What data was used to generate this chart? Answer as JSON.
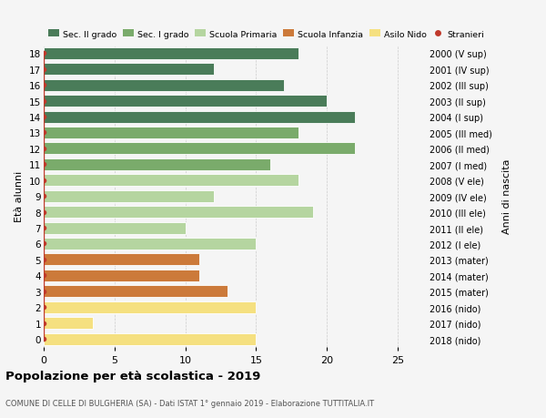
{
  "ages": [
    18,
    17,
    16,
    15,
    14,
    13,
    12,
    11,
    10,
    9,
    8,
    7,
    6,
    5,
    4,
    3,
    2,
    1,
    0
  ],
  "years": [
    "2000 (V sup)",
    "2001 (IV sup)",
    "2002 (III sup)",
    "2003 (II sup)",
    "2004 (I sup)",
    "2005 (III med)",
    "2006 (II med)",
    "2007 (I med)",
    "2008 (V ele)",
    "2009 (IV ele)",
    "2010 (III ele)",
    "2011 (II ele)",
    "2012 (I ele)",
    "2013 (mater)",
    "2014 (mater)",
    "2015 (mater)",
    "2016 (nido)",
    "2017 (nido)",
    "2018 (nido)"
  ],
  "bar_values": [
    18,
    12,
    17,
    20,
    22,
    18,
    22,
    16,
    18,
    12,
    19,
    10,
    15,
    11,
    11,
    13,
    15,
    3.5,
    15
  ],
  "bar_colors": [
    "#4a7c59",
    "#4a7c59",
    "#4a7c59",
    "#4a7c59",
    "#4a7c59",
    "#7aab6b",
    "#7aab6b",
    "#7aab6b",
    "#b5d5a0",
    "#b5d5a0",
    "#b5d5a0",
    "#b5d5a0",
    "#b5d5a0",
    "#cc7a3a",
    "#cc7a3a",
    "#cc7a3a",
    "#f5e080",
    "#f5e080",
    "#f5e080"
  ],
  "stranieri_ages": [
    15,
    12,
    11,
    5,
    4,
    3,
    2,
    1,
    0
  ],
  "stranieri_color": "#c0392b",
  "legend_labels": [
    "Sec. II grado",
    "Sec. I grado",
    "Scuola Primaria",
    "Scuola Infanzia",
    "Asilo Nido",
    "Stranieri"
  ],
  "legend_colors": [
    "#4a7c59",
    "#7aab6b",
    "#b5d5a0",
    "#cc7a3a",
    "#f5e080",
    "#c0392b"
  ],
  "ylabel_left": "Età alunni",
  "ylabel_right": "Anni di nascita",
  "title": "Popolazione per età scolastica - 2019",
  "subtitle": "COMUNE DI CELLE DI BULGHERIA (SA) - Dati ISTAT 1° gennaio 2019 - Elaborazione TUTTITALIA.IT",
  "xlim": [
    0,
    27
  ],
  "background_color": "#f5f5f5",
  "grid_color": "#cccccc"
}
